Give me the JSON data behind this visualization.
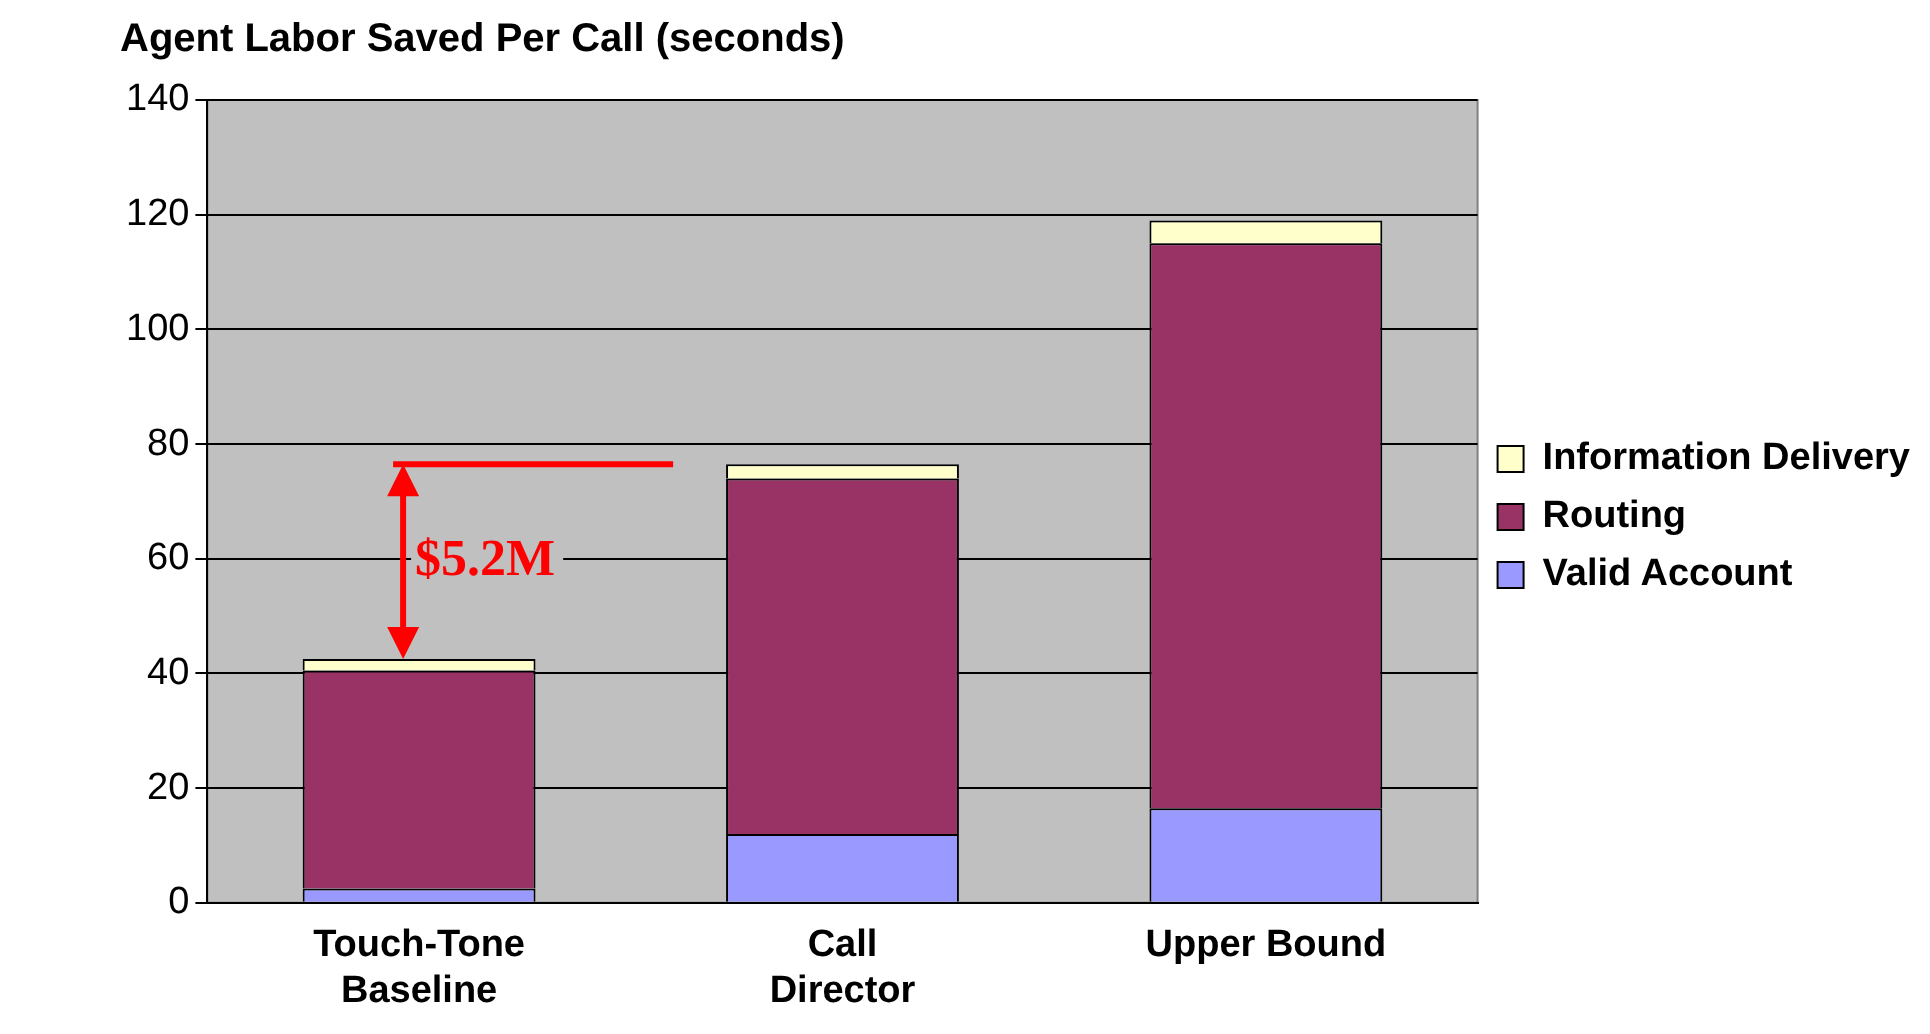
{
  "chart_data": {
    "type": "bar",
    "stacked": true,
    "title": "Agent Labor Saved Per Call (seconds)",
    "categories": [
      "Touch-Tone Baseline",
      "Call Director",
      "Upper Bound"
    ],
    "series": [
      {
        "name": "Valid Account",
        "color": "#9999ff",
        "values": [
          2.5,
          12,
          16.5
        ]
      },
      {
        "name": "Routing",
        "color": "#993366",
        "values": [
          38,
          62,
          98.5
        ]
      },
      {
        "name": "Information Delivery",
        "color": "#ffffcc",
        "values": [
          2,
          2.5,
          4
        ]
      }
    ],
    "ylim": [
      0,
      140
    ],
    "yticks": [
      0,
      20,
      40,
      60,
      80,
      100,
      120,
      140
    ],
    "grid": "y",
    "legend": "right",
    "annotations": [
      "$5.2M"
    ]
  }
}
